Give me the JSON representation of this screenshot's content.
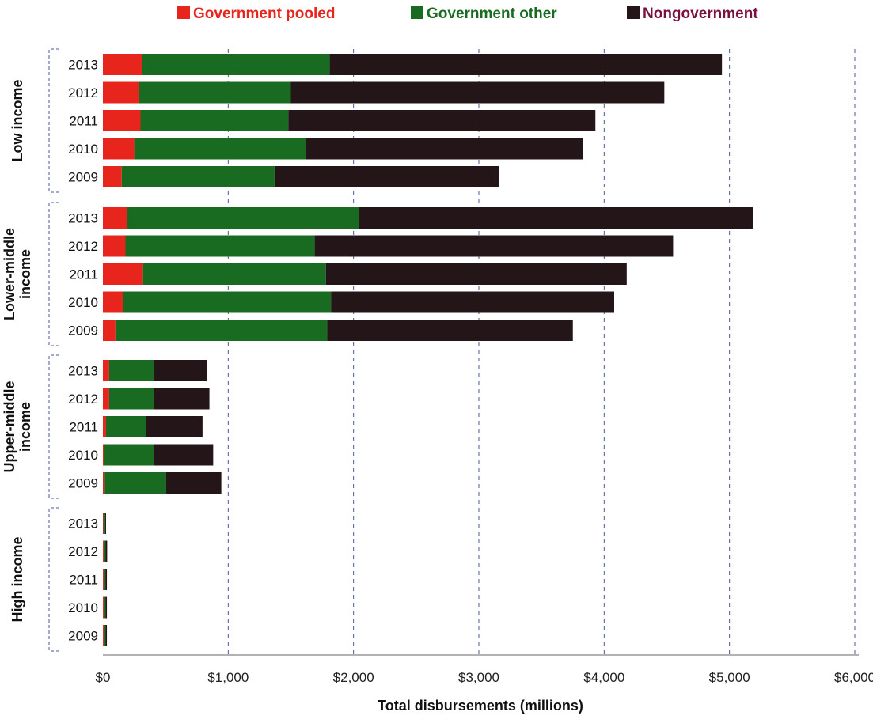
{
  "chart_data": {
    "type": "bar",
    "orientation": "horizontal",
    "stacked": true,
    "xlabel": "Total disbursements (millions)",
    "xlim": [
      0,
      6000
    ],
    "xticks": [
      0,
      1000,
      2000,
      3000,
      4000,
      5000,
      6000
    ],
    "xtick_labels": [
      "$0",
      "$1,000",
      "$2,000",
      "$3,000",
      "$4,000",
      "$5,000",
      "$6,000"
    ],
    "grid": "vertical-dashed",
    "legend_position": "top",
    "series": [
      {
        "name": "Government pooled",
        "color": "#e8251c",
        "label_color": "#e8251c"
      },
      {
        "name": "Government other",
        "color": "#1a6b22",
        "label_color": "#1a6b22"
      },
      {
        "name": "Nongovernment",
        "color": "#241618",
        "label_color": "#7a1040"
      }
    ],
    "groups": [
      {
        "name": "Low income",
        "label_lines": [
          "Low income"
        ],
        "rows": [
          {
            "year": "2013",
            "values": [
              310,
              1500,
              3130
            ]
          },
          {
            "year": "2012",
            "values": [
              290,
              1210,
              2980
            ]
          },
          {
            "year": "2011",
            "values": [
              300,
              1180,
              2450
            ]
          },
          {
            "year": "2010",
            "values": [
              250,
              1370,
              2210
            ]
          },
          {
            "year": "2009",
            "values": [
              150,
              1220,
              1790
            ]
          }
        ]
      },
      {
        "name": "Lower-middle income",
        "label_lines": [
          "Lower-middle",
          "income"
        ],
        "rows": [
          {
            "year": "2013",
            "values": [
              190,
              1850,
              3150
            ]
          },
          {
            "year": "2012",
            "values": [
              180,
              1510,
              2860
            ]
          },
          {
            "year": "2011",
            "values": [
              320,
              1460,
              2400
            ]
          },
          {
            "year": "2010",
            "values": [
              160,
              1660,
              2260
            ]
          },
          {
            "year": "2009",
            "values": [
              100,
              1690,
              1960
            ]
          }
        ]
      },
      {
        "name": "Upper-middle income",
        "label_lines": [
          "Upper-middle",
          "income"
        ],
        "rows": [
          {
            "year": "2013",
            "values": [
              50,
              360,
              420
            ]
          },
          {
            "year": "2012",
            "values": [
              50,
              360,
              440
            ]
          },
          {
            "year": "2011",
            "values": [
              25,
              320,
              450
            ]
          },
          {
            "year": "2010",
            "values": [
              10,
              400,
              470
            ]
          },
          {
            "year": "2009",
            "values": [
              15,
              490,
              440
            ]
          }
        ]
      },
      {
        "name": "High income",
        "label_lines": [
          "High income"
        ],
        "rows": [
          {
            "year": "2013",
            "values": [
              3,
              14,
              8
            ]
          },
          {
            "year": "2012",
            "values": [
              6,
              16,
              12
            ]
          },
          {
            "year": "2011",
            "values": [
              6,
              14,
              12
            ]
          },
          {
            "year": "2010",
            "values": [
              6,
              14,
              12
            ]
          },
          {
            "year": "2009",
            "values": [
              6,
              14,
              12
            ]
          }
        ]
      }
    ]
  }
}
